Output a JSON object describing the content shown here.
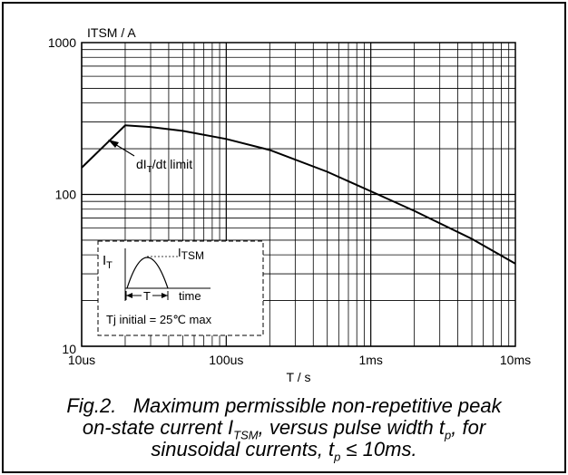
{
  "chart_data": {
    "type": "line",
    "ylabel": "ITSM / A",
    "xlabel": "T / s",
    "x_scale": "log",
    "y_scale": "log",
    "xlim": [
      "10us",
      "10ms"
    ],
    "ylim": [
      10,
      1000
    ],
    "x_tick_labels": [
      "10us",
      "100us",
      "1ms",
      "10ms"
    ],
    "y_tick_labels": [
      "10",
      "100",
      "1000"
    ],
    "grid": true,
    "series": [
      {
        "x": [
          1e-05,
          2e-05,
          3e-05,
          5e-05,
          0.0001,
          0.0002,
          0.0005,
          0.001,
          0.002,
          0.005,
          0.01
        ],
        "y": [
          150,
          285,
          278,
          262,
          232,
          196,
          141,
          105,
          78,
          51,
          35
        ]
      }
    ],
    "annotation": {
      "text": "dI",
      "sub": "T",
      "suffix": "/dt limit"
    },
    "inset": {
      "y_label": "I",
      "y_sub": "T",
      "peak_label": "I",
      "peak_sub": "TSM",
      "period_label": "T",
      "time_label": "time",
      "note": "Tj initial = 25℃ max"
    }
  },
  "caption": {
    "p1": "Fig.2.   Maximum permissible non-repetitive peak",
    "p2": "on-state current I",
    "p2_sub": "TSM",
    "p3": ", versus pulse width t",
    "p3_sub": "p",
    "p4": ", for",
    "p5": "sinusoidal currents, t",
    "p5_sub": "p",
    "p6": " ≤ 10ms."
  }
}
